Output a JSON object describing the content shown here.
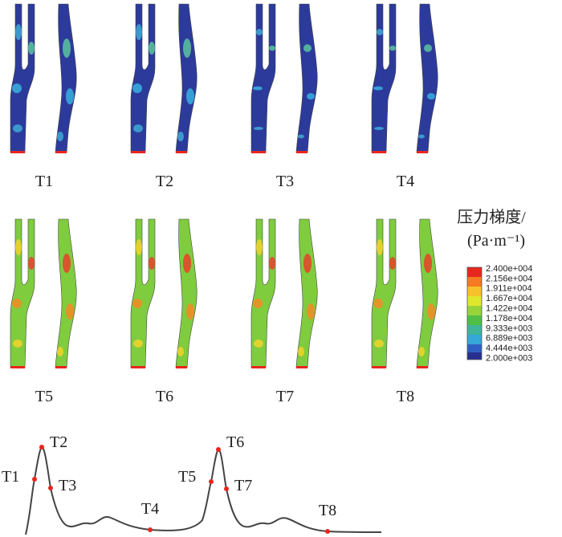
{
  "panels": [
    {
      "label": "T1"
    },
    {
      "label": "T2"
    },
    {
      "label": "T3"
    },
    {
      "label": "T4"
    },
    {
      "label": "T5"
    },
    {
      "label": "T6"
    },
    {
      "label": "T7"
    },
    {
      "label": "T8"
    }
  ],
  "legend": {
    "title": "压力梯度/",
    "unit": "(Pa·m⁻¹)",
    "labels": [
      "2.400e+004",
      "2.156e+004",
      "1.911e+004",
      "1.667e+004",
      "1.422e+004",
      "1.178e+004",
      "9.333e+003",
      "6.889e+003",
      "4.444e+003",
      "2.000e+003"
    ]
  },
  "waveform": {
    "points": [
      "T1",
      "T2",
      "T3",
      "T4",
      "T5",
      "T6",
      "T7",
      "T8"
    ]
  }
}
